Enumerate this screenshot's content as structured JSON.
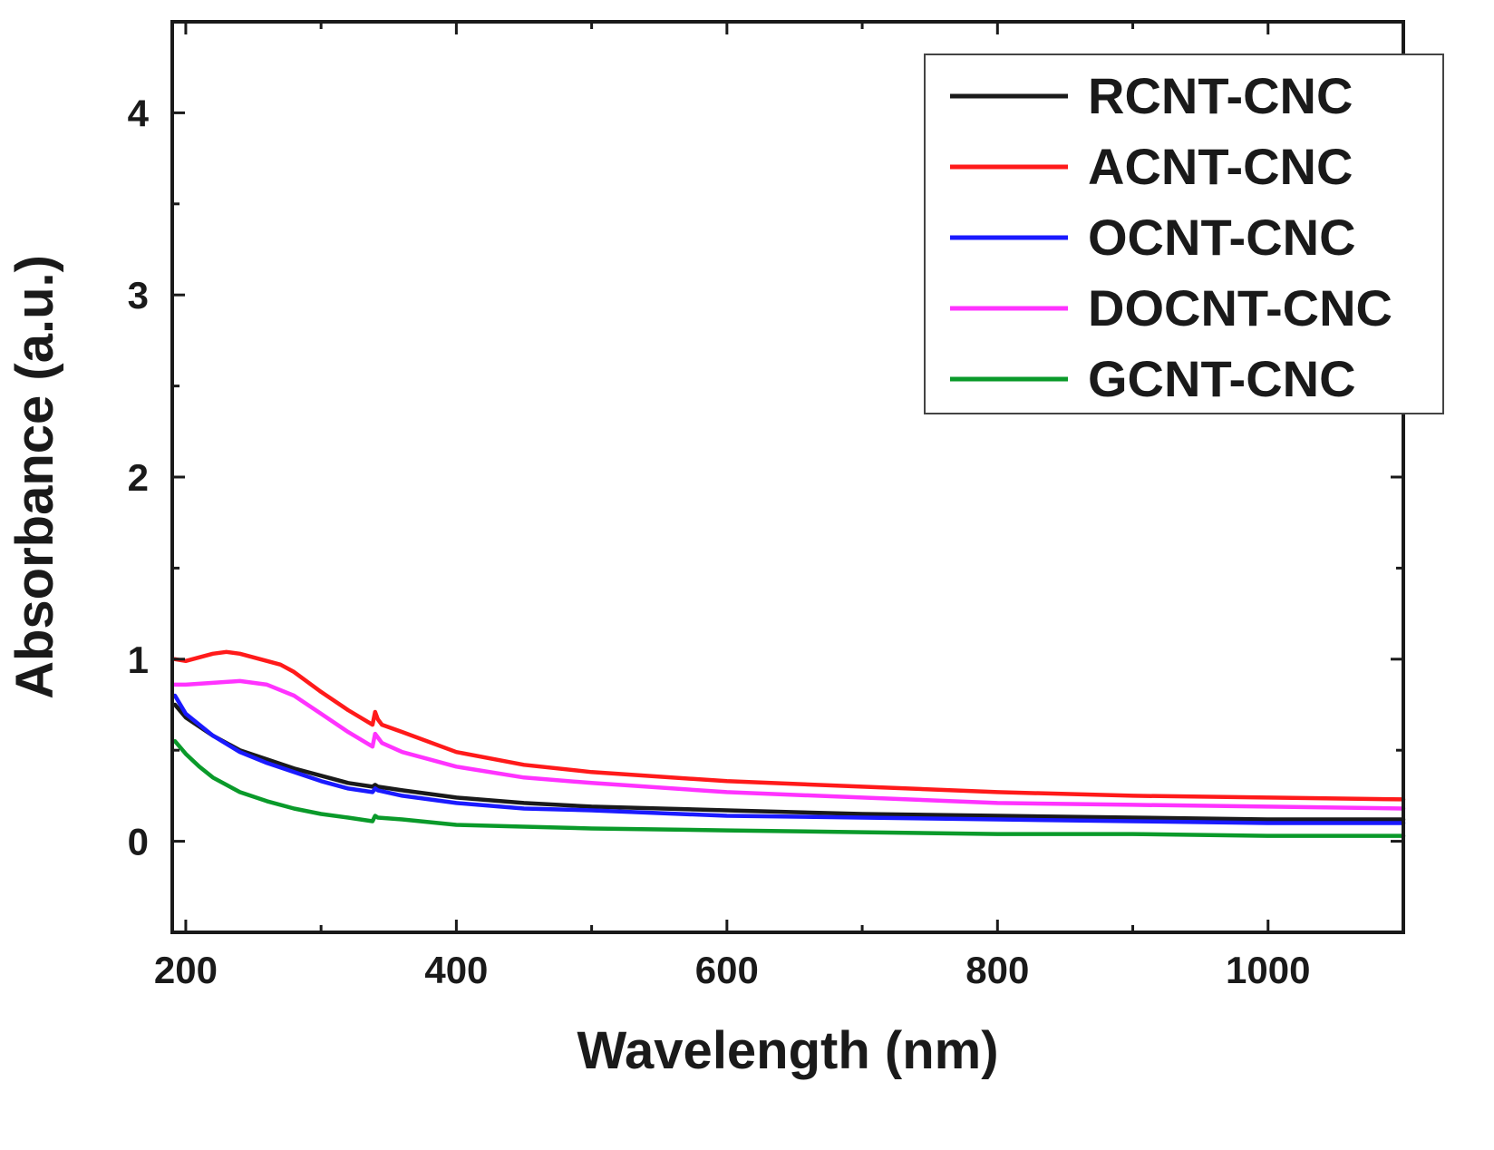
{
  "chart_data": {
    "type": "line",
    "title": "",
    "xlabel": "Wavelength (nm)",
    "ylabel": "Absorbance (a.u.)",
    "xlim": [
      190,
      1100
    ],
    "ylim": [
      -0.5,
      4.5
    ],
    "x_ticks": [
      200,
      400,
      600,
      800,
      1000
    ],
    "x_tick_labels": [
      "200",
      "400",
      "600",
      "800",
      "1000"
    ],
    "x_minor_ticks": [
      300,
      500,
      700,
      900
    ],
    "y_ticks": [
      0,
      1,
      2,
      3,
      4
    ],
    "y_tick_labels": [
      "0",
      "1",
      "2",
      "3",
      "4"
    ],
    "y_minor_ticks": [
      -0.5,
      0.5,
      1.5,
      2.5,
      3.5
    ],
    "legend_position": "top-right",
    "series": [
      {
        "name": "RCNT-CNC",
        "color": "#1a1a1a",
        "x": [
          192,
          200,
          220,
          240,
          260,
          280,
          300,
          320,
          338,
          340,
          342,
          360,
          400,
          450,
          500,
          600,
          700,
          800,
          900,
          1000,
          1100
        ],
        "y": [
          0.75,
          0.68,
          0.58,
          0.5,
          0.45,
          0.4,
          0.36,
          0.32,
          0.3,
          0.31,
          0.3,
          0.28,
          0.24,
          0.21,
          0.19,
          0.17,
          0.15,
          0.14,
          0.13,
          0.12,
          0.12
        ]
      },
      {
        "name": "ACNT-CNC",
        "color": "#ff1a1a",
        "x": [
          192,
          200,
          210,
          220,
          230,
          240,
          260,
          270,
          280,
          300,
          320,
          338,
          340,
          342,
          345,
          360,
          400,
          450,
          500,
          600,
          700,
          800,
          900,
          1000,
          1100
        ],
        "y": [
          1.0,
          0.99,
          1.01,
          1.03,
          1.04,
          1.03,
          0.99,
          0.97,
          0.93,
          0.82,
          0.72,
          0.64,
          0.71,
          0.67,
          0.64,
          0.6,
          0.49,
          0.42,
          0.38,
          0.33,
          0.3,
          0.27,
          0.25,
          0.24,
          0.23
        ]
      },
      {
        "name": "OCNT-CNC",
        "color": "#1a1aff",
        "x": [
          192,
          200,
          220,
          240,
          260,
          280,
          300,
          320,
          338,
          340,
          342,
          360,
          400,
          450,
          500,
          600,
          700,
          800,
          900,
          1000,
          1100
        ],
        "y": [
          0.8,
          0.7,
          0.58,
          0.49,
          0.43,
          0.38,
          0.33,
          0.29,
          0.27,
          0.29,
          0.28,
          0.25,
          0.21,
          0.18,
          0.17,
          0.14,
          0.13,
          0.12,
          0.11,
          0.1,
          0.1
        ]
      },
      {
        "name": "DOCNT-CNC",
        "color": "#ff33ff",
        "x": [
          192,
          200,
          220,
          240,
          260,
          280,
          300,
          320,
          338,
          340,
          342,
          345,
          360,
          400,
          450,
          500,
          600,
          700,
          800,
          900,
          1000,
          1100
        ],
        "y": [
          0.86,
          0.86,
          0.87,
          0.88,
          0.86,
          0.8,
          0.7,
          0.6,
          0.52,
          0.59,
          0.57,
          0.54,
          0.49,
          0.41,
          0.35,
          0.32,
          0.27,
          0.24,
          0.21,
          0.2,
          0.19,
          0.18
        ]
      },
      {
        "name": "GCNT-CNC",
        "color": "#0a9a2a",
        "x": [
          192,
          200,
          210,
          220,
          240,
          260,
          280,
          300,
          320,
          338,
          340,
          342,
          360,
          400,
          450,
          500,
          600,
          700,
          800,
          900,
          1000,
          1100
        ],
        "y": [
          0.55,
          0.48,
          0.41,
          0.35,
          0.27,
          0.22,
          0.18,
          0.15,
          0.13,
          0.11,
          0.14,
          0.13,
          0.12,
          0.09,
          0.08,
          0.07,
          0.06,
          0.05,
          0.04,
          0.04,
          0.03,
          0.03
        ]
      }
    ]
  }
}
